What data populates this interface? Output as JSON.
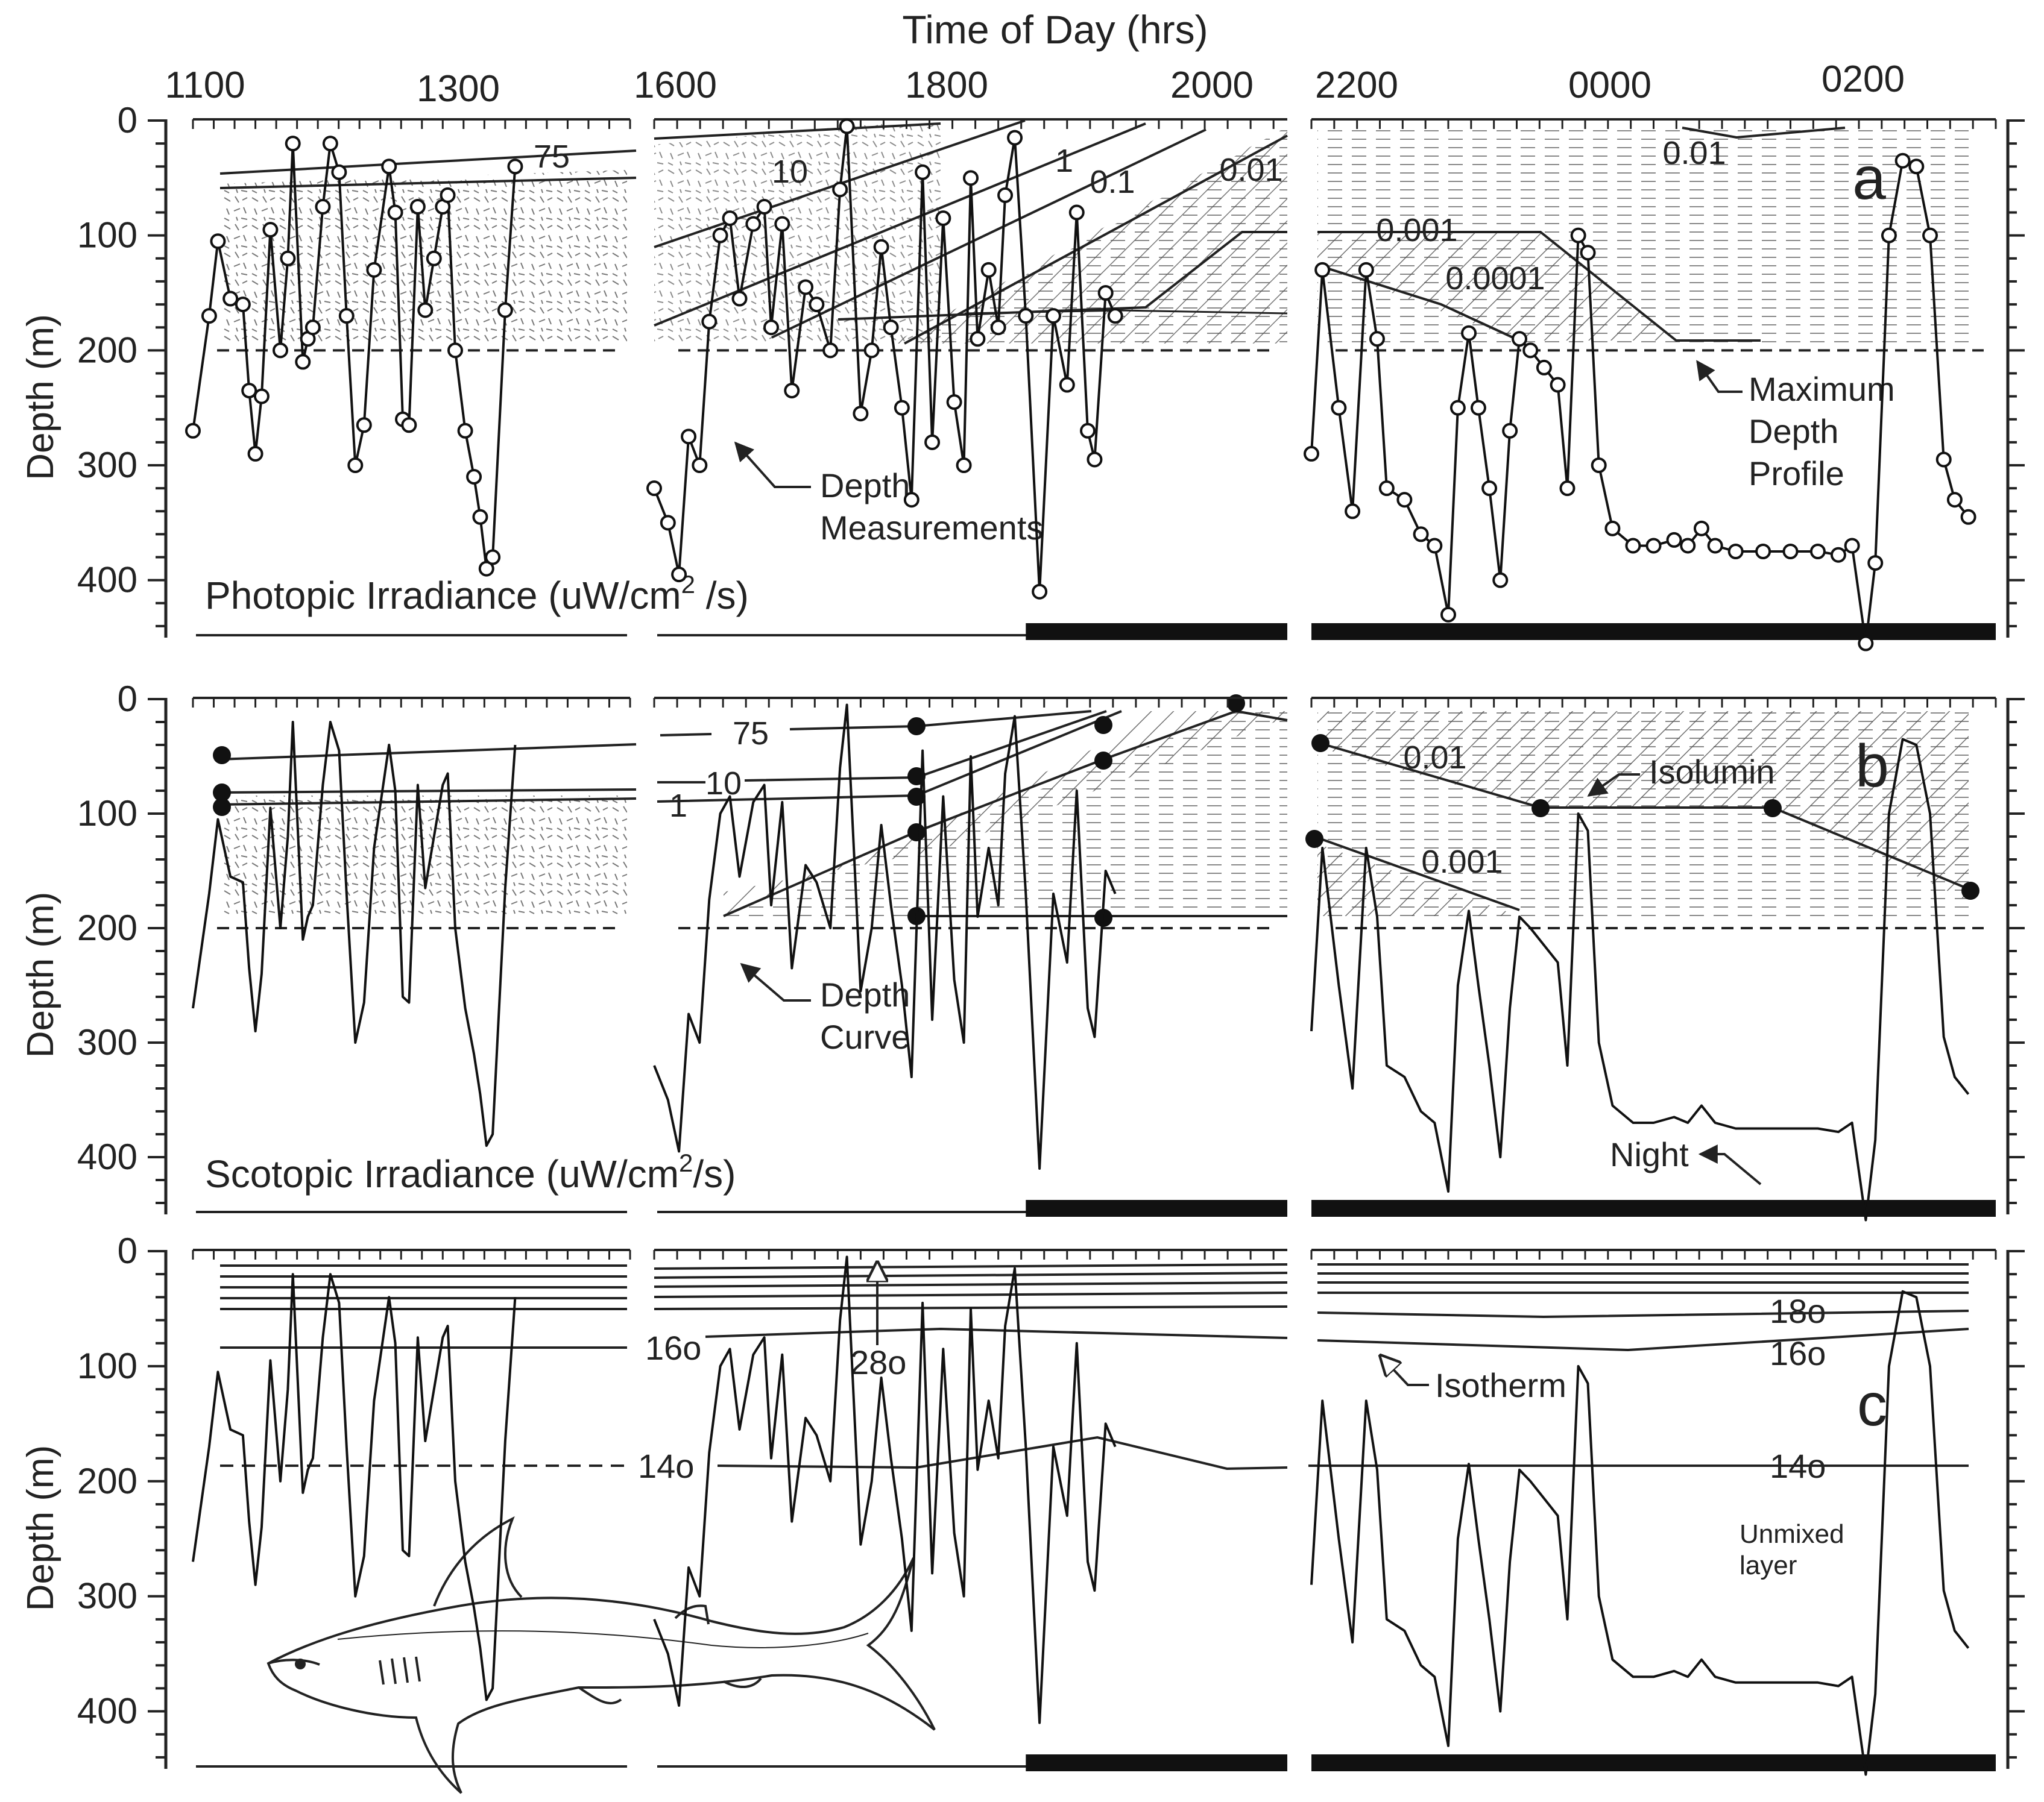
{
  "chart_data": {
    "type": "line",
    "top_axis_title": "Time of Day (hrs)",
    "ylabel": "Depth (m)",
    "ylim": [
      0,
      450
    ],
    "y_inverted": true,
    "y_ticks": [
      0,
      100,
      200,
      300,
      400
    ],
    "top_tick_labels": [
      "1100",
      "1300",
      "1600",
      "1800",
      "2000",
      "2200",
      "0000",
      "0200"
    ],
    "time_segments": [
      {
        "start_h": 11.0,
        "end_h": 14.5
      },
      {
        "start_h": 16.0,
        "end_h": 20.6
      },
      {
        "start_h": 22.0,
        "end_h": 27.0
      }
    ],
    "night_start_h": 18.7,
    "track": [
      [
        11.0,
        270
      ],
      [
        11.13,
        170
      ],
      [
        11.2,
        105
      ],
      [
        11.3,
        155
      ],
      [
        11.4,
        160
      ],
      [
        11.45,
        235
      ],
      [
        11.5,
        290
      ],
      [
        11.55,
        240
      ],
      [
        11.62,
        95
      ],
      [
        11.7,
        200
      ],
      [
        11.76,
        120
      ],
      [
        11.8,
        20
      ],
      [
        11.88,
        210
      ],
      [
        11.92,
        190
      ],
      [
        11.96,
        180
      ],
      [
        12.04,
        75
      ],
      [
        12.1,
        20
      ],
      [
        12.17,
        45
      ],
      [
        12.23,
        170
      ],
      [
        12.3,
        300
      ],
      [
        12.37,
        265
      ],
      [
        12.45,
        130
      ],
      [
        12.57,
        40
      ],
      [
        12.62,
        80
      ],
      [
        12.68,
        260
      ],
      [
        12.73,
        265
      ],
      [
        12.8,
        75
      ],
      [
        12.86,
        165
      ],
      [
        12.93,
        120
      ],
      [
        13.0,
        75
      ],
      [
        13.04,
        65
      ],
      [
        13.1,
        200
      ],
      [
        13.18,
        270
      ],
      [
        13.25,
        310
      ],
      [
        13.3,
        345
      ],
      [
        13.35,
        390
      ],
      [
        13.4,
        380
      ],
      [
        13.5,
        165
      ],
      [
        13.58,
        40
      ],
      [
        16.0,
        320
      ],
      [
        16.1,
        350
      ],
      [
        16.18,
        395
      ],
      [
        16.25,
        275
      ],
      [
        16.33,
        300
      ],
      [
        16.4,
        175
      ],
      [
        16.48,
        100
      ],
      [
        16.55,
        85
      ],
      [
        16.62,
        155
      ],
      [
        16.72,
        90
      ],
      [
        16.8,
        75
      ],
      [
        16.85,
        180
      ],
      [
        16.93,
        90
      ],
      [
        17.0,
        235
      ],
      [
        17.1,
        145
      ],
      [
        17.18,
        160
      ],
      [
        17.28,
        200
      ],
      [
        17.35,
        60
      ],
      [
        17.4,
        5
      ],
      [
        17.5,
        255
      ],
      [
        17.58,
        200
      ],
      [
        17.65,
        110
      ],
      [
        17.72,
        180
      ],
      [
        17.8,
        250
      ],
      [
        17.87,
        330
      ],
      [
        17.95,
        45
      ],
      [
        18.02,
        280
      ],
      [
        18.1,
        85
      ],
      [
        18.18,
        245
      ],
      [
        18.25,
        300
      ],
      [
        18.3,
        50
      ],
      [
        18.35,
        190
      ],
      [
        18.43,
        130
      ],
      [
        18.5,
        180
      ],
      [
        18.55,
        65
      ],
      [
        18.62,
        15
      ],
      [
        18.7,
        170
      ],
      [
        18.8,
        410
      ],
      [
        18.9,
        170
      ],
      [
        19.0,
        230
      ],
      [
        19.07,
        80
      ],
      [
        19.15,
        270
      ],
      [
        19.2,
        295
      ],
      [
        19.28,
        150
      ],
      [
        19.35,
        170
      ],
      [
        22.0,
        290
      ],
      [
        22.08,
        130
      ],
      [
        22.2,
        250
      ],
      [
        22.3,
        340
      ],
      [
        22.4,
        130
      ],
      [
        22.48,
        190
      ],
      [
        22.55,
        320
      ],
      [
        22.68,
        330
      ],
      [
        22.8,
        360
      ],
      [
        22.9,
        370
      ],
      [
        23.0,
        430
      ],
      [
        23.07,
        250
      ],
      [
        23.15,
        185
      ],
      [
        23.22,
        250
      ],
      [
        23.3,
        320
      ],
      [
        23.38,
        400
      ],
      [
        23.45,
        270
      ],
      [
        23.52,
        190
      ],
      [
        23.6,
        200
      ],
      [
        23.7,
        215
      ],
      [
        23.8,
        230
      ],
      [
        23.87,
        320
      ],
      [
        23.95,
        100
      ],
      [
        24.02,
        115
      ],
      [
        24.1,
        300
      ],
      [
        24.2,
        355
      ],
      [
        24.35,
        370
      ],
      [
        24.5,
        370
      ],
      [
        24.65,
        365
      ],
      [
        24.75,
        370
      ],
      [
        24.85,
        355
      ],
      [
        24.95,
        370
      ],
      [
        25.1,
        375
      ],
      [
        25.3,
        375
      ],
      [
        25.5,
        375
      ],
      [
        25.7,
        375
      ],
      [
        25.85,
        378
      ],
      [
        25.95,
        370
      ],
      [
        26.05,
        455
      ],
      [
        26.12,
        385
      ],
      [
        26.22,
        100
      ],
      [
        26.32,
        35
      ],
      [
        26.42,
        40
      ],
      [
        26.52,
        100
      ],
      [
        26.62,
        295
      ],
      [
        26.7,
        330
      ],
      [
        26.8,
        345
      ]
    ],
    "panels": [
      {
        "letter": "a",
        "title": "Photopic Irradiance (uW/cm",
        "title_sup": "2",
        "title_tail": " /s)",
        "isolumin_labels": [
          "75",
          "10",
          "1",
          "0.1",
          "0.01",
          "0.01",
          "0.001",
          "0.0001"
        ],
        "annotations": [
          "Depth",
          "Measurements",
          "Maximum",
          "Depth",
          "Profile"
        ]
      },
      {
        "letter": "b",
        "title": "Scotopic Irradiance (uW/cm",
        "title_sup": "2",
        "title_tail": "/s)",
        "isolumin_labels": [
          "75",
          "10",
          "1",
          "0.01",
          "0.001"
        ],
        "annotations": [
          "Depth",
          "Curve",
          "Isolumin",
          "Night"
        ]
      },
      {
        "letter": "c",
        "isotherm_labels": [
          "16o",
          "14o",
          "28o",
          "18o",
          "16o",
          "14o"
        ],
        "annotations": [
          "Isotherm",
          "Unmixed",
          "layer"
        ]
      }
    ]
  }
}
